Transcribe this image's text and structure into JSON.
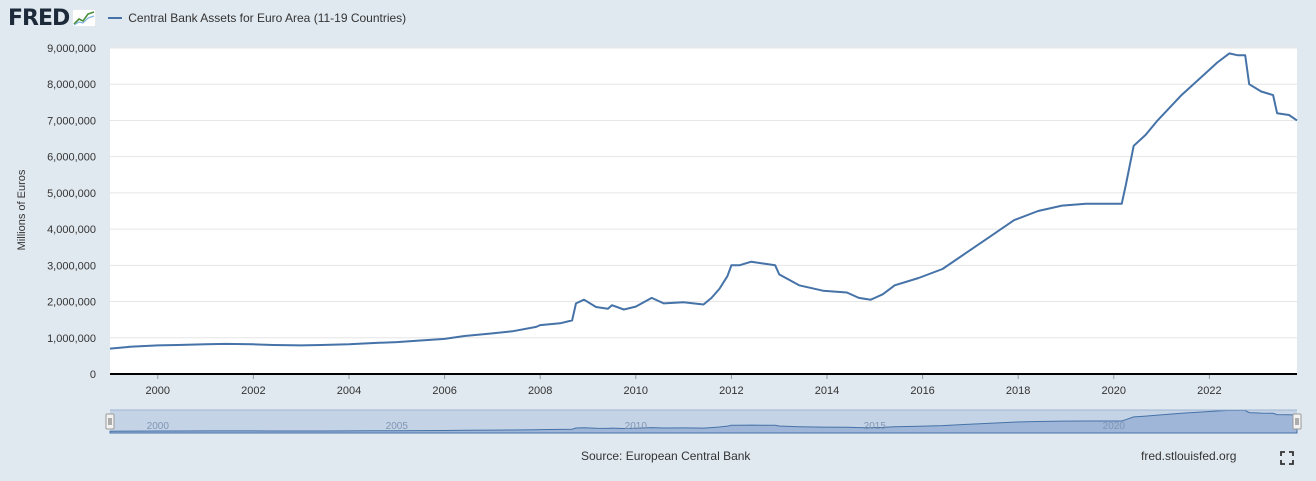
{
  "header": {
    "logo_text": "FRED",
    "logo_icon": "line-chart-icon",
    "legend_label": "Central Bank Assets for Euro Area (11-19 Countries)"
  },
  "footer": {
    "source": "Source: European Central Bank",
    "site": "fred.stlouisfed.org",
    "fullscreen_icon": "fullscreen-icon"
  },
  "colors": {
    "line": "#4572a7",
    "plot_bg": "#ffffff",
    "page_bg": "#e1e9f0",
    "navigator_fill": "#7f9fcc"
  },
  "chart_data": {
    "type": "line",
    "ylabel": "Millions of Euros",
    "ylim": [
      0,
      9000000
    ],
    "xlim": [
      "1999-01",
      "2023-11"
    ],
    "yticks": [
      "0",
      "1,000,000",
      "2,000,000",
      "3,000,000",
      "4,000,000",
      "5,000,000",
      "6,000,000",
      "7,000,000",
      "8,000,000",
      "9,000,000"
    ],
    "xticks": [
      "2000",
      "2002",
      "2004",
      "2006",
      "2008",
      "2010",
      "2012",
      "2014",
      "2016",
      "2018",
      "2020",
      "2022"
    ],
    "navigator_ticks": [
      "2000",
      "2005",
      "2010",
      "2015",
      "2020"
    ],
    "grid": true,
    "series": [
      {
        "name": "Central Bank Assets for Euro Area (11-19 Countries)",
        "x": [
          "1999-01",
          "1999-06",
          "2000-01",
          "2000-06",
          "2001-01",
          "2001-06",
          "2002-01",
          "2002-06",
          "2003-01",
          "2003-06",
          "2004-01",
          "2004-06",
          "2005-01",
          "2005-06",
          "2006-01",
          "2006-06",
          "2007-01",
          "2007-06",
          "2007-12",
          "2008-01",
          "2008-06",
          "2008-09",
          "2008-10",
          "2008-12",
          "2009-03",
          "2009-06",
          "2009-07",
          "2009-10",
          "2010-01",
          "2010-05",
          "2010-08",
          "2011-01",
          "2011-06",
          "2011-08",
          "2011-10",
          "2011-12",
          "2012-01",
          "2012-03",
          "2012-06",
          "2012-09",
          "2012-12",
          "2013-01",
          "2013-06",
          "2013-12",
          "2014-06",
          "2014-09",
          "2014-12",
          "2015-01",
          "2015-03",
          "2015-06",
          "2015-12",
          "2016-06",
          "2016-12",
          "2017-06",
          "2017-12",
          "2018-06",
          "2018-12",
          "2019-06",
          "2019-12",
          "2020-03",
          "2020-04",
          "2020-06",
          "2020-09",
          "2020-12",
          "2021-06",
          "2021-12",
          "2022-03",
          "2022-06",
          "2022-08",
          "2022-10",
          "2022-11",
          "2023-02",
          "2023-05",
          "2023-06",
          "2023-09",
          "2023-11"
        ],
        "values": [
          700000,
          750000,
          790000,
          800000,
          820000,
          830000,
          820000,
          800000,
          790000,
          800000,
          820000,
          850000,
          880000,
          920000,
          970000,
          1050000,
          1120000,
          1180000,
          1300000,
          1350000,
          1400000,
          1480000,
          1950000,
          2050000,
          1850000,
          1800000,
          1900000,
          1780000,
          1860000,
          2100000,
          1950000,
          1980000,
          1920000,
          2100000,
          2350000,
          2700000,
          3000000,
          3000000,
          3100000,
          3050000,
          3000000,
          2750000,
          2450000,
          2300000,
          2250000,
          2100000,
          2050000,
          2100000,
          2200000,
          2450000,
          2650000,
          2900000,
          3350000,
          3800000,
          4250000,
          4500000,
          4650000,
          4700000,
          4700000,
          4700000,
          5200000,
          6300000,
          6600000,
          7000000,
          7700000,
          8300000,
          8600000,
          8850000,
          8800000,
          8800000,
          8000000,
          7800000,
          7700000,
          7200000,
          7150000,
          7000000
        ]
      }
    ]
  }
}
